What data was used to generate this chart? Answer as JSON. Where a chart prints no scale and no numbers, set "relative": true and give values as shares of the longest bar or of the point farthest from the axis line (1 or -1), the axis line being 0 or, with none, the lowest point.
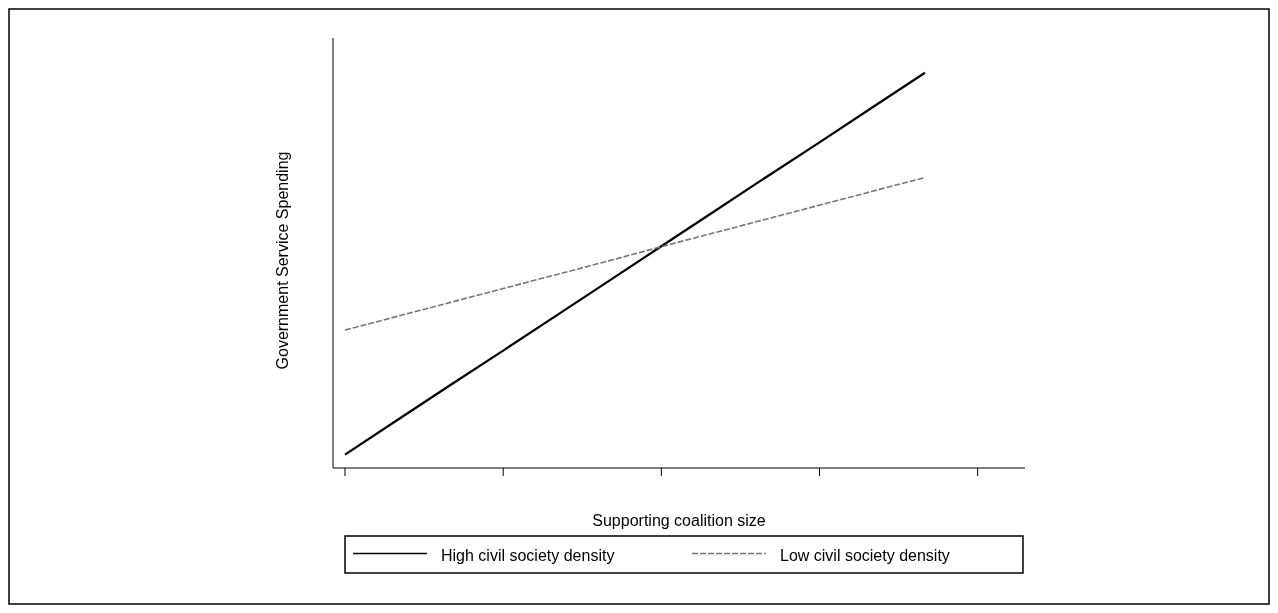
{
  "chart_data": {
    "type": "line",
    "xlabel": "Supporting coalition size",
    "ylabel": "Government Service Spending",
    "relative": true,
    "categories": [
      null,
      null,
      null,
      null,
      null,
      null,
      null,
      null,
      null,
      null,
      null,
      null
    ],
    "legend": "bottom",
    "series": [
      {
        "name": "High civil society density",
        "color": "#000000",
        "line_style": "solid",
        "values": [
          0.034,
          0.122,
          0.21,
          0.297,
          0.385,
          0.473,
          0.561,
          0.649,
          0.737,
          0.824,
          0.912,
          1.0
        ]
      },
      {
        "name": "Low civil society density",
        "color": "#777777",
        "line_style": "dashed",
        "values": [
          0.349,
          0.384,
          0.419,
          0.454,
          0.489,
          0.524,
          0.56,
          0.595,
          0.63,
          0.665,
          0.7,
          0.735
        ]
      }
    ]
  }
}
